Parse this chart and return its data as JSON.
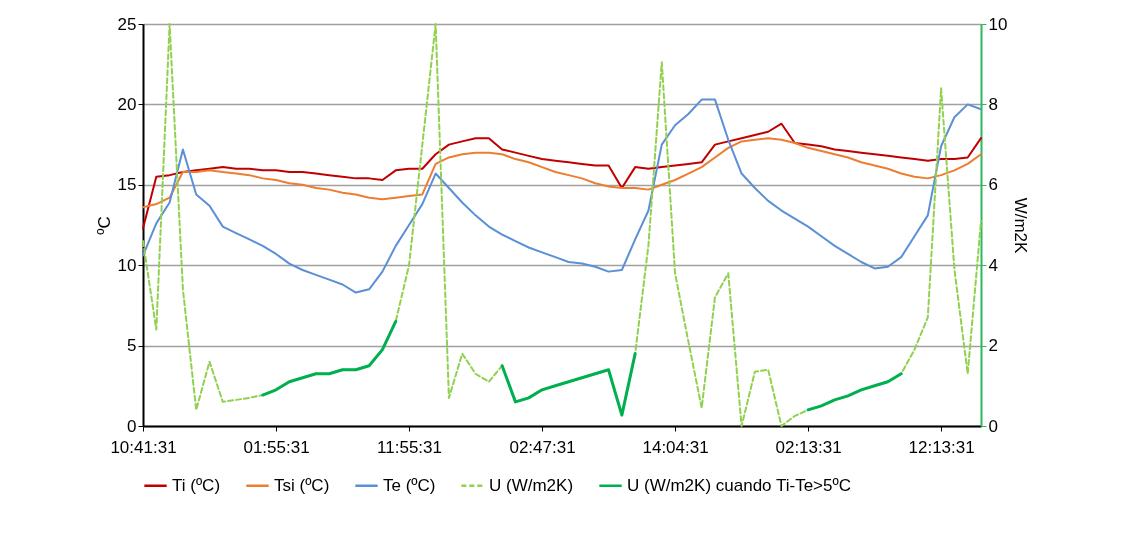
{
  "chart_data": {
    "type": "line",
    "ylabel": "ºC",
    "y2label": "W/m2K",
    "categories": [
      "10:41:31",
      null,
      null,
      null,
      null,
      null,
      null,
      null,
      null,
      null,
      "01:55:31",
      null,
      null,
      null,
      null,
      null,
      null,
      null,
      null,
      null,
      "11:55:31",
      null,
      null,
      null,
      null,
      null,
      null,
      null,
      null,
      null,
      "02:47:31",
      null,
      null,
      null,
      null,
      null,
      null,
      null,
      null,
      null,
      "14:04:31",
      null,
      null,
      null,
      null,
      null,
      null,
      null,
      null,
      null,
      "02:13:31",
      null,
      null,
      null,
      null,
      null,
      null,
      null,
      null,
      null,
      "12:13:31",
      null,
      null,
      null
    ],
    "ylim": [
      0,
      25
    ],
    "yticks": [
      0,
      5,
      10,
      15,
      20,
      25
    ],
    "y2lim": [
      0,
      10
    ],
    "y2ticks": [
      0,
      2,
      4,
      6,
      8,
      10
    ],
    "grid": "y",
    "legend": "bottom",
    "series": [
      {
        "name": "Ti (ºC)",
        "color": "#c00000",
        "line_style": "solid",
        "values": [
          12.3,
          15.5,
          15.6,
          15.8,
          15.9,
          16.0,
          16.1,
          16.0,
          16.0,
          15.9,
          15.9,
          15.8,
          15.8,
          15.7,
          15.6,
          15.5,
          15.4,
          15.4,
          15.3,
          15.9,
          16.0,
          16.0,
          16.9,
          17.5,
          17.7,
          17.9,
          17.9,
          17.2,
          17.0,
          16.8,
          16.6,
          16.5,
          16.4,
          16.3,
          16.2,
          16.2,
          14.8,
          16.1,
          16.0,
          16.1,
          16.2,
          16.3,
          16.4,
          17.5,
          17.7,
          17.9,
          18.1,
          18.3,
          18.8,
          17.6,
          17.5,
          17.4,
          17.2,
          17.1,
          17.0,
          16.9,
          16.8,
          16.7,
          16.6,
          16.5,
          16.6,
          16.6,
          16.7,
          17.9
        ]
      },
      {
        "name": "Tsi (ºC)",
        "color": "#ed7d31",
        "line_style": "solid",
        "values": [
          13.6,
          13.8,
          14.2,
          15.8,
          15.8,
          15.9,
          15.8,
          15.7,
          15.6,
          15.4,
          15.3,
          15.1,
          15.0,
          14.8,
          14.7,
          14.5,
          14.4,
          14.2,
          14.1,
          14.2,
          14.3,
          14.4,
          16.3,
          16.7,
          16.9,
          17.0,
          17.0,
          16.9,
          16.6,
          16.4,
          16.1,
          15.8,
          15.6,
          15.4,
          15.1,
          14.9,
          14.8,
          14.8,
          14.7,
          15.0,
          15.3,
          15.7,
          16.1,
          16.7,
          17.3,
          17.7,
          17.8,
          17.9,
          17.8,
          17.6,
          17.3,
          17.1,
          16.9,
          16.7,
          16.4,
          16.2,
          16.0,
          15.7,
          15.5,
          15.4,
          15.6,
          15.9,
          16.3,
          16.9
        ]
      },
      {
        "name": "Te (ºC)",
        "color": "#5b8fd6",
        "line_style": "solid",
        "values": [
          10.6,
          12.6,
          13.9,
          17.2,
          14.4,
          13.7,
          12.4,
          12.0,
          11.6,
          11.2,
          10.7,
          10.1,
          9.7,
          9.4,
          9.1,
          8.8,
          8.3,
          8.5,
          9.6,
          11.2,
          12.5,
          13.8,
          15.7,
          14.8,
          13.9,
          13.1,
          12.4,
          11.9,
          11.5,
          11.1,
          10.8,
          10.5,
          10.2,
          10.1,
          9.9,
          9.6,
          9.7,
          11.6,
          13.4,
          17.5,
          18.7,
          19.4,
          20.3,
          20.3,
          17.8,
          15.7,
          14.8,
          14.0,
          13.4,
          12.9,
          12.4,
          11.8,
          11.2,
          10.7,
          10.2,
          9.8,
          9.9,
          10.5,
          11.8,
          13.1,
          17.4,
          19.2,
          20.0,
          19.7
        ]
      },
      {
        "name": "U (W/m2K)",
        "color": "#92d050",
        "line_style": "dashed",
        "axis": "y2",
        "values": [
          4.6,
          2.4,
          10.0,
          3.4,
          0.4,
          1.6,
          0.6,
          0.65,
          0.7,
          0.77,
          0.9,
          1.1,
          1.2,
          1.3,
          1.3,
          1.4,
          1.4,
          1.5,
          1.9,
          2.6,
          4.0,
          7.0,
          10.0,
          0.7,
          1.8,
          1.3,
          1.1,
          1.5,
          0.6,
          0.7,
          0.9,
          1.0,
          1.1,
          1.2,
          1.3,
          1.4,
          0.27,
          1.8,
          4.5,
          9.05,
          3.8,
          2.1,
          0.45,
          3.2,
          3.8,
          0,
          1.35,
          1.4,
          0,
          0.25,
          0.4,
          0.5,
          0.65,
          0.75,
          0.9,
          1.0,
          1.1,
          1.3,
          1.9,
          2.7,
          8.4,
          3.9,
          1.3,
          5.1
        ]
      },
      {
        "name": "U (W/m2K) cuando Ti-Te>5ºC",
        "color": "#00b050",
        "line_style": "solid",
        "axis": "y2",
        "values": [
          null,
          null,
          null,
          null,
          null,
          null,
          null,
          null,
          null,
          0.77,
          0.9,
          1.1,
          1.2,
          1.3,
          1.3,
          1.4,
          1.4,
          1.5,
          1.9,
          2.6,
          null,
          null,
          null,
          null,
          null,
          null,
          null,
          1.5,
          0.6,
          0.7,
          0.9,
          1.0,
          1.1,
          1.2,
          1.3,
          1.4,
          0.27,
          1.8,
          null,
          null,
          null,
          null,
          null,
          null,
          null,
          null,
          null,
          null,
          null,
          null,
          0.4,
          0.5,
          0.65,
          0.75,
          0.9,
          1.0,
          1.1,
          1.3,
          null,
          null,
          null,
          null,
          null,
          null
        ]
      }
    ]
  }
}
